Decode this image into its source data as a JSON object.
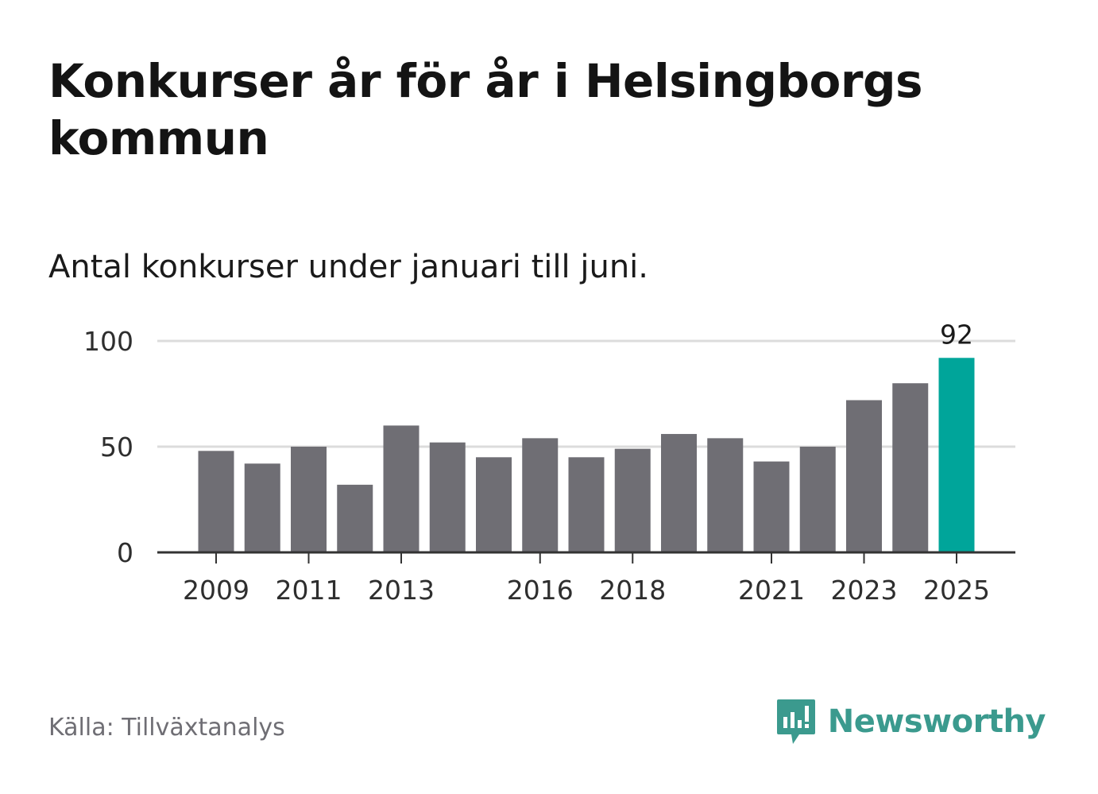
{
  "header": {
    "title": "Konkurser år för år i Helsingborgs kommun",
    "subtitle": "Antal konkurser under januari till juni."
  },
  "footer": {
    "source": "Källa: Tillväxtanalys",
    "brand": "Newsworthy",
    "brand_icon": "newsworthy-logo-icon"
  },
  "colors": {
    "bar": "#6f6e74",
    "highlight": "#00a59a",
    "grid": "#dcdcdc",
    "axis": "#333333",
    "brand": "#3b9a8e"
  },
  "chart_data": {
    "type": "bar",
    "title": "Konkurser år för år i Helsingborgs kommun",
    "subtitle": "Antal konkurser under januari till juni.",
    "xlabel": "",
    "ylabel": "",
    "categories": [
      "2009",
      "2010",
      "2011",
      "2012",
      "2013",
      "2014",
      "2015",
      "2016",
      "2017",
      "2018",
      "2019",
      "2020",
      "2021",
      "2022",
      "2023",
      "2024",
      "2025"
    ],
    "values": [
      48,
      42,
      50,
      32,
      60,
      52,
      45,
      54,
      45,
      49,
      56,
      54,
      43,
      50,
      72,
      80,
      92
    ],
    "ylim": [
      0,
      100
    ],
    "yticks": [
      0,
      50,
      100
    ],
    "xtick_labels": [
      "2009",
      "2011",
      "2013",
      "2016",
      "2018",
      "2021",
      "2023",
      "2025"
    ],
    "highlight_index": 16,
    "data_labels": [
      {
        "category": "2025",
        "text": "92"
      }
    ],
    "grid": "horizontal",
    "legend": "none"
  }
}
